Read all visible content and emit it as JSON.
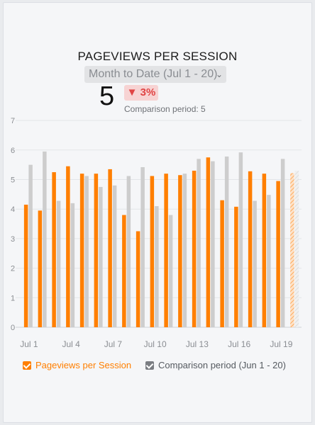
{
  "widget": {
    "title": "PAGEVIEWS PER SESSION",
    "period_label": "Month to Date (Jul 1 - 20)",
    "value": "5",
    "change": "3%",
    "change_arrow": "▼",
    "comparison_text": "Comparison period: 5"
  },
  "colors": {
    "primary": "#ff7f00",
    "comparison": "#cdcdcd",
    "negative": "#e04444"
  },
  "chart_data": {
    "type": "bar",
    "categories": [
      "Jul 1",
      "Jul 2",
      "Jul 3",
      "Jul 4",
      "Jul 5",
      "Jul 6",
      "Jul 7",
      "Jul 8",
      "Jul 9",
      "Jul 10",
      "Jul 11",
      "Jul 12",
      "Jul 13",
      "Jul 14",
      "Jul 15",
      "Jul 16",
      "Jul 17",
      "Jul 18",
      "Jul 19",
      "Jul 20"
    ],
    "x_tick_labels": [
      "Jul 1",
      "Jul 4",
      "Jul 7",
      "Jul 10",
      "Jul 13",
      "Jul 16",
      "Jul 19"
    ],
    "y_ticks": [
      0,
      1,
      2,
      3,
      4,
      5,
      6,
      7
    ],
    "ylim": [
      0,
      7
    ],
    "grid": true,
    "legend_position": "bottom",
    "partial_last_point": true,
    "series": [
      {
        "name": "Pageviews per Session",
        "values": [
          4.15,
          3.95,
          5.25,
          5.45,
          5.2,
          5.2,
          5.35,
          3.8,
          3.25,
          5.12,
          5.2,
          5.15,
          5.3,
          5.75,
          4.3,
          4.08,
          5.28,
          5.2,
          4.95,
          5.22
        ]
      },
      {
        "name": "Comparison period (Jun 1 - 20)",
        "values": [
          5.5,
          5.95,
          4.28,
          4.2,
          5.12,
          4.75,
          4.8,
          5.12,
          5.42,
          4.1,
          3.8,
          5.2,
          5.7,
          5.62,
          5.78,
          5.92,
          4.28,
          4.48,
          5.7,
          5.3
        ]
      }
    ]
  }
}
